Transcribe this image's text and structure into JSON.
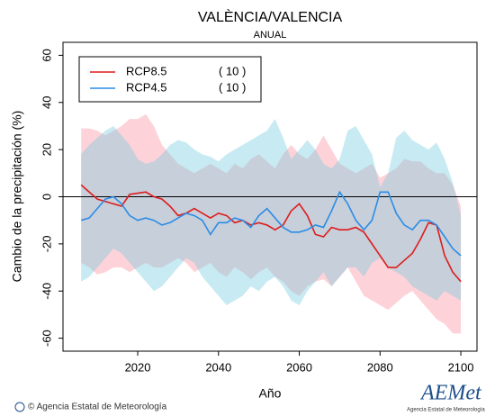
{
  "chart_data": {
    "type": "line",
    "title": "VALÈNCIA/VALENCIA",
    "subtitle": "ANUAL",
    "x_label": "Año",
    "y_label": "Cambio de la precipitación (%)",
    "x": [
      2006,
      2008,
      2010,
      2012,
      2014,
      2016,
      2018,
      2020,
      2022,
      2024,
      2026,
      2028,
      2030,
      2032,
      2034,
      2036,
      2038,
      2040,
      2042,
      2044,
      2046,
      2048,
      2050,
      2052,
      2054,
      2056,
      2058,
      2060,
      2062,
      2064,
      2066,
      2068,
      2070,
      2072,
      2074,
      2076,
      2078,
      2080,
      2082,
      2084,
      2086,
      2088,
      2090,
      2092,
      2094,
      2096,
      2098,
      2100
    ],
    "series": [
      {
        "name": "RCP8.5",
        "count_label": "( 10 )",
        "color": "#dd1c1c",
        "band_color": "rgba(250,140,155,0.38)",
        "values": [
          5,
          2,
          -1,
          -2,
          -3,
          -4,
          1,
          1.5,
          2,
          0,
          -1,
          -4,
          -8,
          -7,
          -5,
          -7,
          -9,
          -7,
          -8,
          -11,
          -10,
          -12,
          -11,
          -12,
          -14,
          -12,
          -6,
          -3,
          -8,
          -16,
          -17,
          -13,
          -14,
          -14,
          -13,
          -15,
          -20,
          -25,
          -30,
          -30,
          -27,
          -24,
          -18,
          -11,
          -12,
          -25,
          -32,
          -36
        ],
        "upper": [
          29,
          29,
          28,
          26,
          28,
          30,
          33,
          33,
          35,
          30,
          22,
          18,
          14,
          12,
          10,
          12,
          14,
          12,
          10,
          14,
          12,
          16,
          18,
          15,
          12,
          18,
          22,
          18,
          16,
          20,
          26,
          20,
          14,
          12,
          10,
          12,
          14,
          8,
          10,
          12,
          16,
          15,
          15,
          12,
          10,
          10,
          5,
          -4
        ],
        "lower": [
          -28,
          -30,
          -33,
          -32,
          -30,
          -30,
          -32,
          -30,
          -28,
          -30,
          -30,
          -28,
          -26,
          -28,
          -32,
          -30,
          -28,
          -32,
          -34,
          -30,
          -32,
          -35,
          -32,
          -30,
          -34,
          -36,
          -40,
          -42,
          -38,
          -36,
          -35,
          -38,
          -34,
          -30,
          -36,
          -42,
          -44,
          -46,
          -48,
          -45,
          -42,
          -40,
          -44,
          -48,
          -52,
          -54,
          -58,
          -58
        ]
      },
      {
        "name": "RCP4.5",
        "count_label": "( 10 )",
        "color": "#2b8ce6",
        "band_color": "rgba(110,200,220,0.38)",
        "values": [
          -10,
          -9,
          -5,
          -1,
          0,
          -3,
          -8,
          -10,
          -9,
          -10,
          -12,
          -11,
          -9,
          -7,
          -8,
          -10,
          -16,
          -11,
          -11,
          -9,
          -10,
          -13,
          -8,
          -5,
          -9,
          -13,
          -15,
          -15,
          -14,
          -12,
          -13,
          -6,
          2,
          -3,
          -10,
          -14,
          -10,
          2,
          2,
          -7,
          -12,
          -14,
          -10,
          -10,
          -12,
          -17,
          -22,
          -25
        ],
        "upper": [
          18,
          22,
          25,
          28,
          30,
          26,
          22,
          16,
          14,
          15,
          18,
          22,
          24,
          23,
          20,
          18,
          17,
          15,
          18,
          20,
          22,
          24,
          26,
          28,
          33,
          25,
          16,
          20,
          24,
          20,
          14,
          12,
          16,
          28,
          30,
          24,
          18,
          4,
          10,
          25,
          28,
          24,
          22,
          20,
          23,
          16,
          6,
          -8
        ],
        "lower": [
          -36,
          -34,
          -30,
          -26,
          -22,
          -24,
          -28,
          -32,
          -36,
          -40,
          -38,
          -34,
          -30,
          -26,
          -28,
          -34,
          -38,
          -42,
          -46,
          -44,
          -42,
          -38,
          -40,
          -36,
          -34,
          -38,
          -44,
          -46,
          -40,
          -36,
          -32,
          -38,
          -34,
          -30,
          -30,
          -34,
          -28,
          -26,
          -30,
          -32,
          -34,
          -38,
          -40,
          -42,
          -44,
          -40,
          -42,
          -44
        ]
      }
    ],
    "reference_line": 0,
    "xlim": [
      2001.5,
      2104
    ],
    "ylim": [
      -65.5,
      65.5
    ],
    "xticks": [
      2020,
      2040,
      2060,
      2080,
      2100
    ],
    "yticks": [
      -60,
      -40,
      -20,
      0,
      20,
      40,
      60
    ],
    "footer": "© Agencia Estatal de Meteorología",
    "logo": {
      "text": "AEMet",
      "caption": "Agencia Estatal de Meteorología"
    }
  }
}
